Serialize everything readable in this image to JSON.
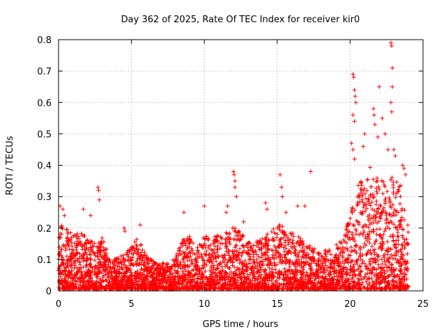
{
  "chart_data": {
    "type": "scatter",
    "title": "Day 362 of 2025, Rate Of TEC Index for receiver kir0",
    "xlabel": "GPS time / hours",
    "ylabel": "ROTI / TECUs",
    "xlim": [
      0,
      25
    ],
    "ylim": [
      0,
      0.8
    ],
    "xticks": [
      0,
      5,
      10,
      15,
      20,
      25
    ],
    "yticks": [
      0,
      0.1,
      0.2,
      0.3,
      0.4,
      0.5,
      0.6,
      0.7,
      0.8
    ],
    "grid": true,
    "marker": "+",
    "color": "#ff0000",
    "x_range_of_samples": [
      0,
      24
    ],
    "envelope": {
      "x": [
        0,
        0.5,
        1,
        1.5,
        2,
        2.5,
        3,
        3.5,
        4,
        4.5,
        5,
        5.5,
        6,
        6.5,
        7,
        7.5,
        8,
        8.5,
        9,
        9.5,
        10,
        10.5,
        11,
        11.5,
        12,
        12.5,
        13,
        13.5,
        14,
        14.5,
        15,
        15.5,
        16,
        16.5,
        17,
        17.5,
        18,
        18.5,
        19,
        19.5,
        20,
        20.5,
        21,
        21.5,
        22,
        22.5,
        23,
        23.5,
        24
      ],
      "y_typical_max": [
        0.24,
        0.2,
        0.17,
        0.19,
        0.17,
        0.15,
        0.17,
        0.1,
        0.1,
        0.11,
        0.14,
        0.17,
        0.11,
        0.09,
        0.08,
        0.09,
        0.1,
        0.16,
        0.18,
        0.13,
        0.18,
        0.16,
        0.18,
        0.19,
        0.2,
        0.18,
        0.15,
        0.15,
        0.17,
        0.18,
        0.21,
        0.2,
        0.18,
        0.17,
        0.15,
        0.13,
        0.12,
        0.13,
        0.14,
        0.16,
        0.24,
        0.33,
        0.36,
        0.4,
        0.34,
        0.38,
        0.36,
        0.33,
        0.2
      ]
    },
    "outliers": [
      {
        "x": 0.1,
        "y": 0.27
      },
      {
        "x": 0.3,
        "y": 0.26
      },
      {
        "x": 0.4,
        "y": 0.24
      },
      {
        "x": 1.7,
        "y": 0.26
      },
      {
        "x": 2.2,
        "y": 0.24
      },
      {
        "x": 2.7,
        "y": 0.33
      },
      {
        "x": 2.75,
        "y": 0.32
      },
      {
        "x": 2.8,
        "y": 0.29
      },
      {
        "x": 4.5,
        "y": 0.2
      },
      {
        "x": 4.55,
        "y": 0.19
      },
      {
        "x": 5.6,
        "y": 0.21
      },
      {
        "x": 8.6,
        "y": 0.25
      },
      {
        "x": 10.0,
        "y": 0.27
      },
      {
        "x": 11.5,
        "y": 0.25
      },
      {
        "x": 11.6,
        "y": 0.27
      },
      {
        "x": 12.0,
        "y": 0.38
      },
      {
        "x": 12.05,
        "y": 0.37
      },
      {
        "x": 12.1,
        "y": 0.35
      },
      {
        "x": 12.1,
        "y": 0.33
      },
      {
        "x": 12.2,
        "y": 0.3
      },
      {
        "x": 12.7,
        "y": 0.22
      },
      {
        "x": 14.2,
        "y": 0.28
      },
      {
        "x": 14.3,
        "y": 0.26
      },
      {
        "x": 15.2,
        "y": 0.37
      },
      {
        "x": 15.3,
        "y": 0.33
      },
      {
        "x": 15.35,
        "y": 0.3
      },
      {
        "x": 15.6,
        "y": 0.25
      },
      {
        "x": 16.4,
        "y": 0.27
      },
      {
        "x": 16.9,
        "y": 0.27
      },
      {
        "x": 17.3,
        "y": 0.38
      },
      {
        "x": 20.2,
        "y": 0.69
      },
      {
        "x": 20.25,
        "y": 0.68
      },
      {
        "x": 20.3,
        "y": 0.64
      },
      {
        "x": 20.35,
        "y": 0.62
      },
      {
        "x": 20.4,
        "y": 0.6
      },
      {
        "x": 20.2,
        "y": 0.56
      },
      {
        "x": 20.3,
        "y": 0.54
      },
      {
        "x": 20.1,
        "y": 0.47
      },
      {
        "x": 20.2,
        "y": 0.45
      },
      {
        "x": 20.3,
        "y": 0.42
      },
      {
        "x": 20.9,
        "y": 0.46
      },
      {
        "x": 21.0,
        "y": 0.5
      },
      {
        "x": 21.6,
        "y": 0.58
      },
      {
        "x": 21.65,
        "y": 0.56
      },
      {
        "x": 21.7,
        "y": 0.53
      },
      {
        "x": 21.9,
        "y": 0.49
      },
      {
        "x": 22.0,
        "y": 0.65
      },
      {
        "x": 22.2,
        "y": 0.55
      },
      {
        "x": 22.4,
        "y": 0.5
      },
      {
        "x": 22.6,
        "y": 0.45
      },
      {
        "x": 22.8,
        "y": 0.79
      },
      {
        "x": 22.85,
        "y": 0.78
      },
      {
        "x": 22.9,
        "y": 0.71
      },
      {
        "x": 22.9,
        "y": 0.65
      },
      {
        "x": 22.8,
        "y": 0.6
      },
      {
        "x": 22.85,
        "y": 0.57
      },
      {
        "x": 23.0,
        "y": 0.45
      },
      {
        "x": 23.1,
        "y": 0.43
      },
      {
        "x": 23.6,
        "y": 0.4
      },
      {
        "x": 23.7,
        "y": 0.39
      },
      {
        "x": 23.8,
        "y": 0.37
      }
    ]
  }
}
